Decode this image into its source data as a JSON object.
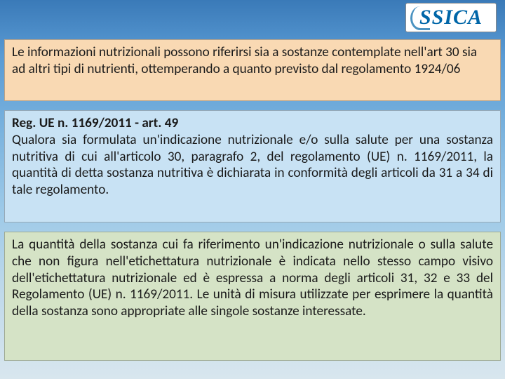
{
  "logo": {
    "text": "SSICA"
  },
  "blocks": {
    "peach": {
      "text": "Le informazioni nutrizionali possono riferirsi sia a sostanze contemplate nell'art 30 sia ad altri tipi di nutrienti, ottemperando a quanto previsto dal regolamento 1924/06"
    },
    "blue": {
      "heading": "Reg. UE n. 1169/2011 - art. 49",
      "text": "Qualora sia formulata un'indicazione nutrizionale e/o sulla salute per una sostanza nutritiva di cui all'articolo 30, paragrafo 2, del regolamento (UE) n. 1169/2011, la quantità di detta sostanza nutritiva è dichiarata in conformità degli articoli da 31 a 34 di tale regolamento."
    },
    "green": {
      "text": "La quantità della sostanza cui fa riferimento un'indicazione nutrizionale o sulla salute che non figura nell'etichettatura nutrizionale è indicata nello stesso campo visivo dell'etichettatura nutrizionale ed è espressa a norma degli articoli 31, 32 e 33 del Regolamento (UE) n. 1169/2011. Le unità di misura utilizzate per esprimere la quantità della sostanza sono appropriate alle singole sostanze interessate."
    }
  },
  "style": {
    "colors": {
      "peach_bg": "#f9d9b3",
      "blue_bg": "#c8e2f4",
      "green_bg": "#d5e3c6",
      "text": "#1a1a1a",
      "logo": "#0066a8"
    },
    "font_size_pt": 14,
    "font_family": "Calibri"
  }
}
